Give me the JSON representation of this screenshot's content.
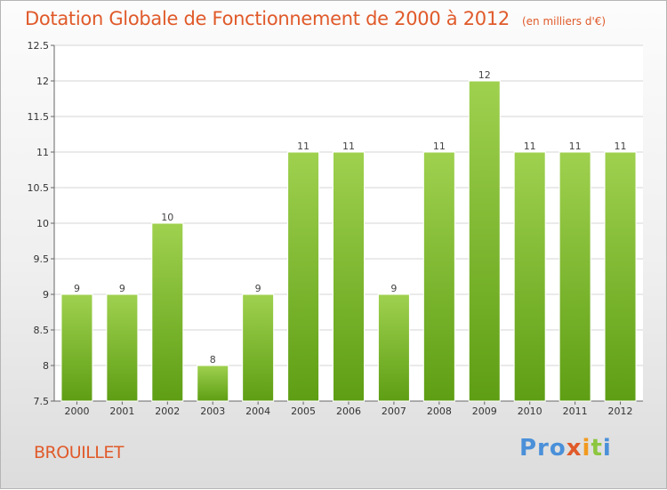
{
  "chart_data": {
    "type": "bar",
    "title": "Dotation Globale de Fonctionnement de 2000 à 2012",
    "subtitle": "(en milliers d'€)",
    "categories": [
      "2000",
      "2001",
      "2002",
      "2003",
      "2004",
      "2005",
      "2006",
      "2007",
      "2008",
      "2009",
      "2010",
      "2011",
      "2012"
    ],
    "values": [
      9,
      9,
      10,
      8,
      9,
      11,
      11,
      9,
      11,
      12,
      11,
      11,
      11
    ],
    "data_labels": [
      "9",
      "9",
      "10",
      "8",
      "9",
      "11",
      "11",
      "9",
      "11",
      "12",
      "11",
      "11",
      "11"
    ],
    "ylim": [
      7.5,
      12.5
    ],
    "yticks": [
      7.5,
      8,
      8.5,
      9,
      9.5,
      10,
      10.5,
      11,
      11.5,
      12,
      12.5
    ],
    "ytick_labels": [
      "7.5",
      "8",
      "8.5",
      "9",
      "9.5",
      "10",
      "10.5",
      "11",
      "11.5",
      "12",
      "12.5"
    ],
    "xlabel": "",
    "ylabel": "",
    "grid": true,
    "bar_color": "#8cc63f"
  },
  "footer": {
    "commune": "BROUILLET",
    "logo": {
      "p1": "Pro",
      "p2": "x",
      "p3": "i",
      "p4": "t",
      "p5": "i"
    }
  },
  "colors": {
    "title": "#e05a2a",
    "bar_top": "#9fd14f",
    "bar_bottom": "#5e9e14"
  }
}
